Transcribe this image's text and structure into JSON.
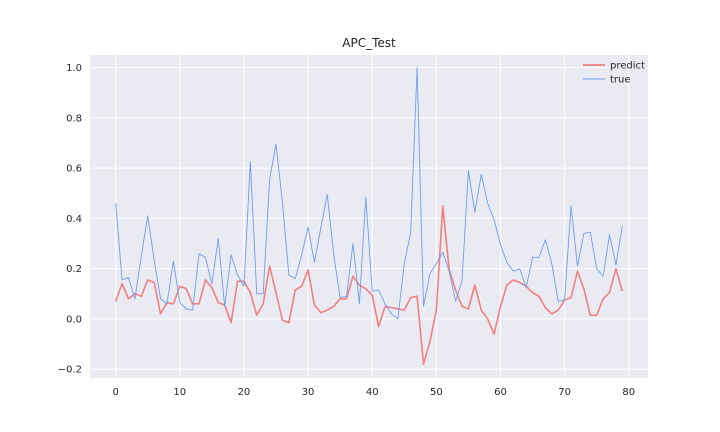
{
  "chart_data": {
    "type": "line",
    "title": "APC_Test",
    "xlabel": "",
    "ylabel": "",
    "xlim": [
      -4,
      83
    ],
    "ylim": [
      -0.235,
      1.05
    ],
    "xticks": [
      0,
      10,
      20,
      30,
      40,
      50,
      60,
      70,
      80
    ],
    "yticks": [
      -0.2,
      0.0,
      0.2,
      0.4,
      0.6,
      0.8,
      1.0
    ],
    "xtick_labels": [
      "0",
      "10",
      "20",
      "30",
      "40",
      "50",
      "60",
      "70",
      "80"
    ],
    "ytick_labels": [
      "−0.2",
      "0.0",
      "0.2",
      "0.4",
      "0.6",
      "0.8",
      "1.0"
    ],
    "grid": true,
    "legend": "top-right",
    "background": "#eaeaf2",
    "series": [
      {
        "name": "predict",
        "color": "#f08080",
        "width": 1.6,
        "values": [
          0.07,
          0.14,
          0.08,
          0.1,
          0.09,
          0.155,
          0.145,
          0.02,
          0.065,
          0.06,
          0.13,
          0.12,
          0.06,
          0.06,
          0.155,
          0.125,
          0.065,
          0.055,
          -0.015,
          0.15,
          0.15,
          0.105,
          0.015,
          0.06,
          0.21,
          0.105,
          -0.005,
          -0.015,
          0.115,
          0.13,
          0.195,
          0.055,
          0.025,
          0.035,
          0.05,
          0.08,
          0.08,
          0.17,
          0.135,
          0.12,
          0.095,
          -0.03,
          0.05,
          0.045,
          0.04,
          0.035,
          0.085,
          0.09,
          -0.18,
          -0.09,
          0.035,
          0.45,
          0.195,
          0.115,
          0.05,
          0.04,
          0.135,
          0.035,
          0.0,
          -0.06,
          0.05,
          0.135,
          0.155,
          0.145,
          0.13,
          0.105,
          0.09,
          0.045,
          0.02,
          0.035,
          0.075,
          0.085,
          0.19,
          0.12,
          0.015,
          0.015,
          0.08,
          0.105,
          0.2,
          0.11
        ]
      },
      {
        "name": "true",
        "color": "#6d9eeb",
        "width": 0.9,
        "values": [
          0.46,
          0.155,
          0.165,
          0.08,
          0.25,
          0.41,
          0.235,
          0.08,
          0.06,
          0.23,
          0.065,
          0.04,
          0.035,
          0.26,
          0.245,
          0.14,
          0.32,
          0.05,
          0.255,
          0.175,
          0.13,
          0.625,
          0.1,
          0.1,
          0.555,
          0.695,
          0.465,
          0.175,
          0.16,
          0.255,
          0.365,
          0.225,
          0.365,
          0.495,
          0.255,
          0.085,
          0.09,
          0.3,
          0.06,
          0.485,
          0.11,
          0.115,
          0.06,
          0.02,
          0.0,
          0.22,
          0.345,
          1.0,
          0.05,
          0.18,
          0.22,
          0.265,
          0.19,
          0.07,
          0.15,
          0.59,
          0.425,
          0.575,
          0.46,
          0.395,
          0.295,
          0.225,
          0.19,
          0.2,
          0.125,
          0.245,
          0.245,
          0.315,
          0.22,
          0.07,
          0.075,
          0.45,
          0.21,
          0.34,
          0.345,
          0.2,
          0.17,
          0.335,
          0.215,
          0.37
        ]
      }
    ]
  }
}
